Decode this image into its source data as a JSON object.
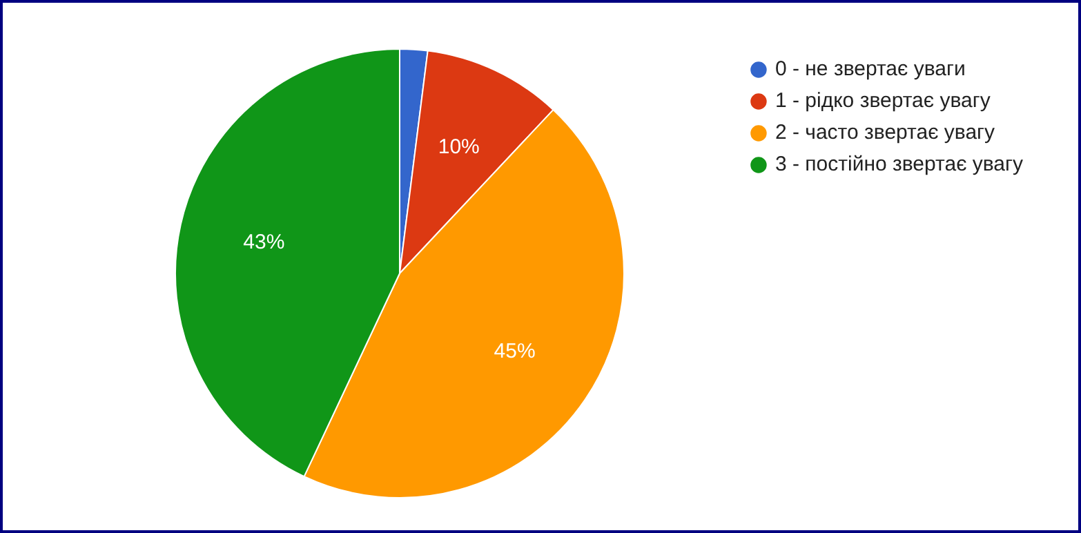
{
  "chart_data": {
    "type": "pie",
    "categories": [
      "0 - не звертає уваги",
      "1 - рідко звертає увагу",
      "2 - часто звертає увагу",
      "3 - постійно звертає увагу"
    ],
    "values": [
      2,
      10,
      45,
      43
    ],
    "colors": [
      "#3366cc",
      "#dc3912",
      "#ff9900",
      "#109618"
    ],
    "value_labels": [
      null,
      "10%",
      "45%",
      "43%"
    ],
    "legend": "top right"
  }
}
